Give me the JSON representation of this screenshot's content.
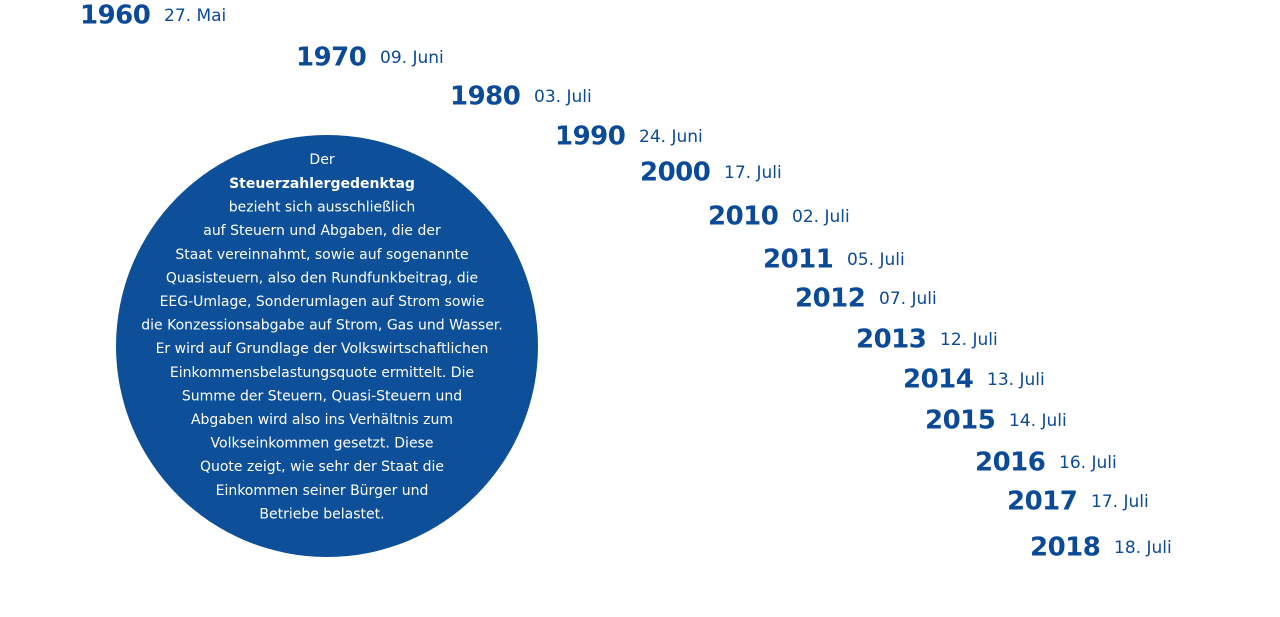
{
  "entries": [
    {
      "year": "1960",
      "date": "27. Mai"
    },
    {
      "year": "1970",
      "date": "09. Juni"
    },
    {
      "year": "1980",
      "date": "03. Juli"
    },
    {
      "year": "1990",
      "date": "24. Juni"
    },
    {
      "year": "2000",
      "date": "17. Juli"
    },
    {
      "year": "2010",
      "date": "02. Juli"
    },
    {
      "year": "2011",
      "date": "05. Juli"
    },
    {
      "year": "2012",
      "date": "07. Juli"
    },
    {
      "year": "2013",
      "date": "12. Juli"
    },
    {
      "year": "2014",
      "date": "13. Juli"
    },
    {
      "year": "2015",
      "date": "14. Juli"
    },
    {
      "year": "2016",
      "date": "16. Juli"
    },
    {
      "year": "2017",
      "date": "17. Juli"
    },
    {
      "year": "2018",
      "date": "18. Juli"
    }
  ],
  "circle": {
    "intro": "Der",
    "term": "Steuerzahlergedenktag",
    "lines": [
      "bezieht sich ausschließlich",
      "auf Steuern und Abgaben, die der",
      "Staat vereinnahmt, sowie auf sogenannte",
      "Quasisteuern, also den Rundfunkbeitrag, die",
      "EEG-Umlage, Sonderumlagen auf Strom sowie",
      "die Konzessionsabgabe auf Strom, Gas und Wasser.",
      "Er wird auf Grundlage der Volkswirtschaftlichen",
      "Einkommensbelastungsquote ermittelt. Die",
      "Summe der Steuern, Quasi-Steuern und",
      "Abgaben wird also ins Verhältnis zum",
      "Volkseinkommen gesetzt. Diese",
      "Quote zeigt, wie sehr der Staat die",
      "Einkommen seiner Bürger und",
      "Betriebe belastet."
    ]
  }
}
